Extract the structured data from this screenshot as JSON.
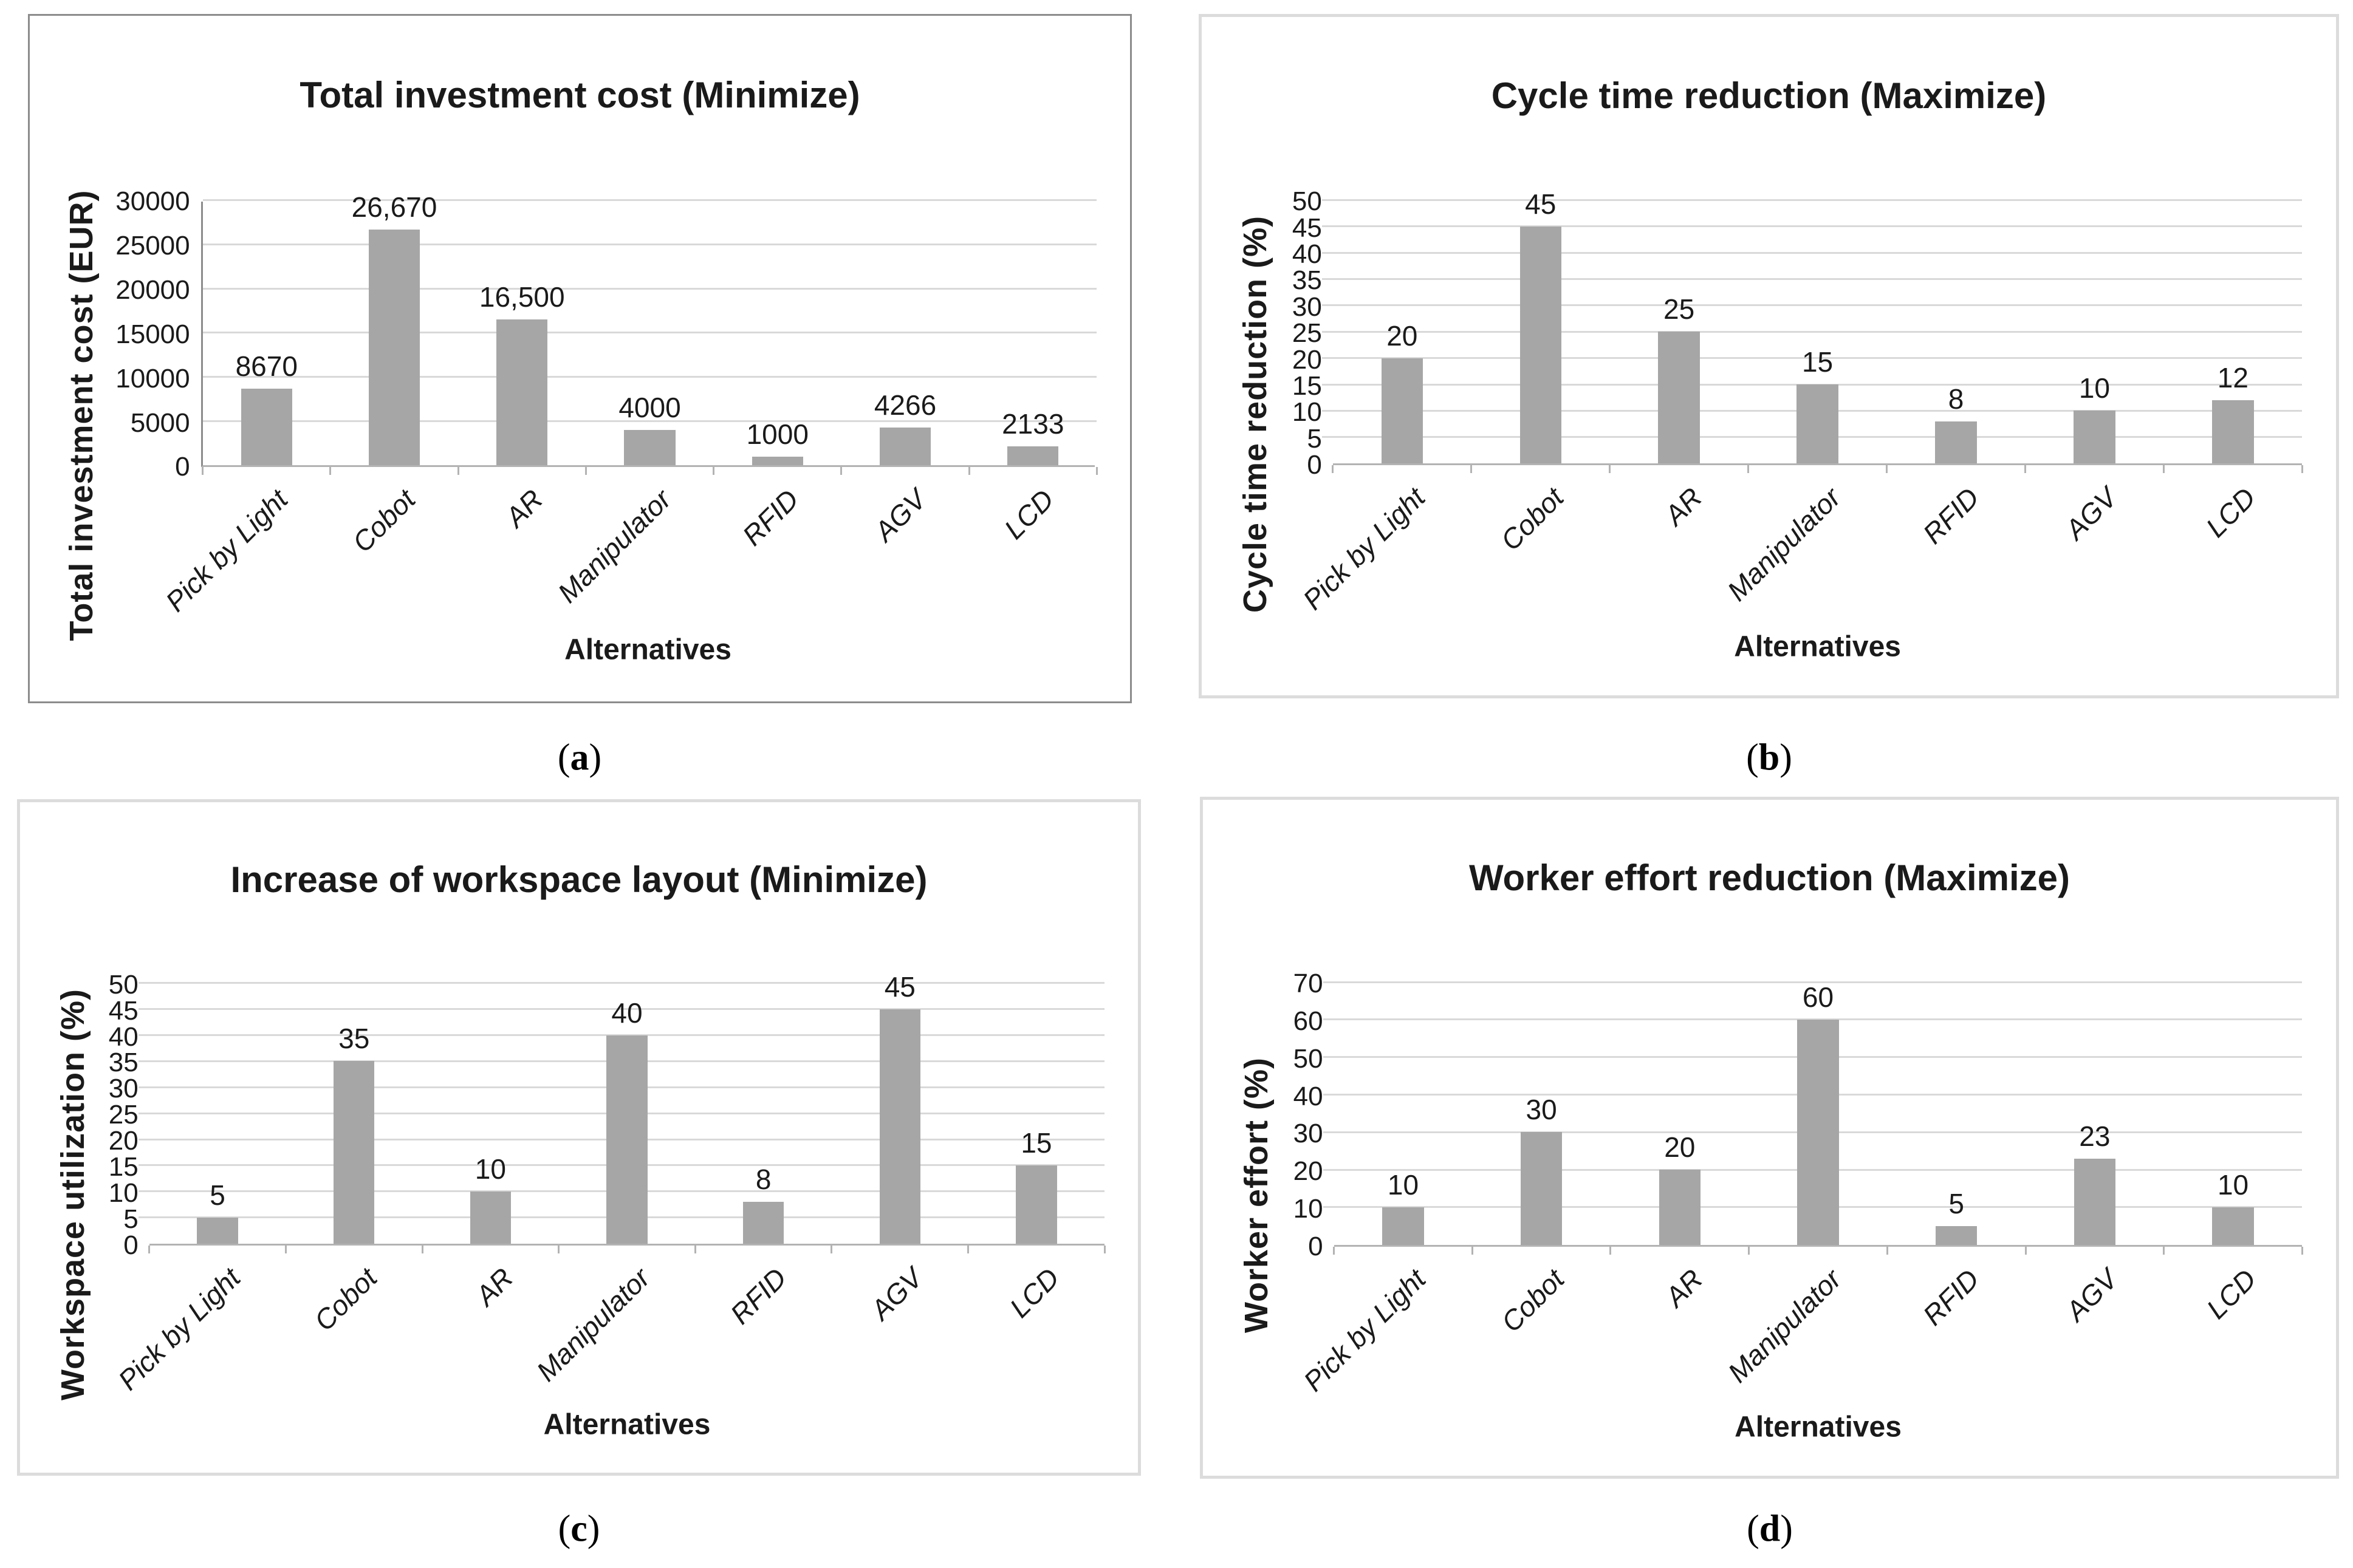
{
  "chart_data": [
    {
      "type": "bar",
      "panel_id": "a",
      "title": "Total investment cost (Minimize)",
      "xlabel": "Alternatives",
      "ylabel": "Total investment cost (EUR)",
      "categories": [
        "Pick by Light",
        "Cobot",
        "AR",
        "Manipulator",
        "RFID",
        "AGV",
        "LCD"
      ],
      "values": [
        8670,
        26670,
        16500,
        4000,
        1000,
        4266,
        2133
      ],
      "value_labels": [
        "8670",
        "26,670",
        "16,500",
        "4000",
        "1000",
        "4266",
        "2133"
      ],
      "ylim": [
        0,
        30000
      ],
      "y_step": 5000,
      "y_tick_labels": [
        "30000",
        "25000",
        "20000",
        "15000",
        "10000",
        "5000",
        "0"
      ],
      "grid": "horizontal",
      "legend": "none",
      "bar_color": "#a6a6a6"
    },
    {
      "type": "bar",
      "panel_id": "b",
      "title": "Cycle time reduction (Maximize)",
      "xlabel": "Alternatives",
      "ylabel": "Cycle time reduction (%)",
      "categories": [
        "Pick by Light",
        "Cobot",
        "AR",
        "Manipulator",
        "RFID",
        "AGV",
        "LCD"
      ],
      "values": [
        20,
        45,
        25,
        15,
        8,
        10,
        12
      ],
      "value_labels": [
        "20",
        "45",
        "25",
        "15",
        "8",
        "10",
        "12"
      ],
      "ylim": [
        0,
        50
      ],
      "y_step": 5,
      "y_tick_labels": [
        "50",
        "45",
        "40",
        "35",
        "30",
        "25",
        "20",
        "15",
        "10",
        "5",
        "0"
      ],
      "grid": "horizontal",
      "legend": "none",
      "bar_color": "#a6a6a6"
    },
    {
      "type": "bar",
      "panel_id": "c",
      "title": "Increase of workspace layout (Minimize)",
      "xlabel": "Alternatives",
      "ylabel": "Workspace utilization (%)",
      "categories": [
        "Pick by Light",
        "Cobot",
        "AR",
        "Manipulator",
        "RFID",
        "AGV",
        "LCD"
      ],
      "values": [
        5,
        35,
        10,
        40,
        8,
        45,
        15
      ],
      "value_labels": [
        "5",
        "35",
        "10",
        "40",
        "8",
        "45",
        "15"
      ],
      "ylim": [
        0,
        50
      ],
      "y_step": 5,
      "y_tick_labels": [
        "50",
        "45",
        "40",
        "35",
        "30",
        "25",
        "20",
        "15",
        "10",
        "5",
        "0"
      ],
      "grid": "horizontal",
      "legend": "none",
      "bar_color": "#a6a6a6"
    },
    {
      "type": "bar",
      "panel_id": "d",
      "title": "Worker effort reduction (Maximize)",
      "xlabel": "Alternatives",
      "ylabel": "Worker effort (%)",
      "categories": [
        "Pick by Light",
        "Cobot",
        "AR",
        "Manipulator",
        "RFID",
        "AGV",
        "LCD"
      ],
      "values": [
        10,
        30,
        20,
        60,
        5,
        23,
        10
      ],
      "value_labels": [
        "10",
        "30",
        "20",
        "60",
        "5",
        "23",
        "10"
      ],
      "ylim": [
        0,
        70
      ],
      "y_step": 10,
      "y_tick_labels": [
        "70",
        "60",
        "50",
        "40",
        "30",
        "20",
        "10",
        "0"
      ],
      "grid": "horizontal",
      "legend": "none",
      "bar_color": "#a6a6a6"
    }
  ],
  "captions": [
    {
      "prefix": "(",
      "letter": "a",
      "suffix": ")"
    },
    {
      "prefix": "(",
      "letter": "b",
      "suffix": ")"
    },
    {
      "prefix": "(",
      "letter": "c",
      "suffix": ")"
    },
    {
      "prefix": "(",
      "letter": "d",
      "suffix": ")"
    }
  ]
}
